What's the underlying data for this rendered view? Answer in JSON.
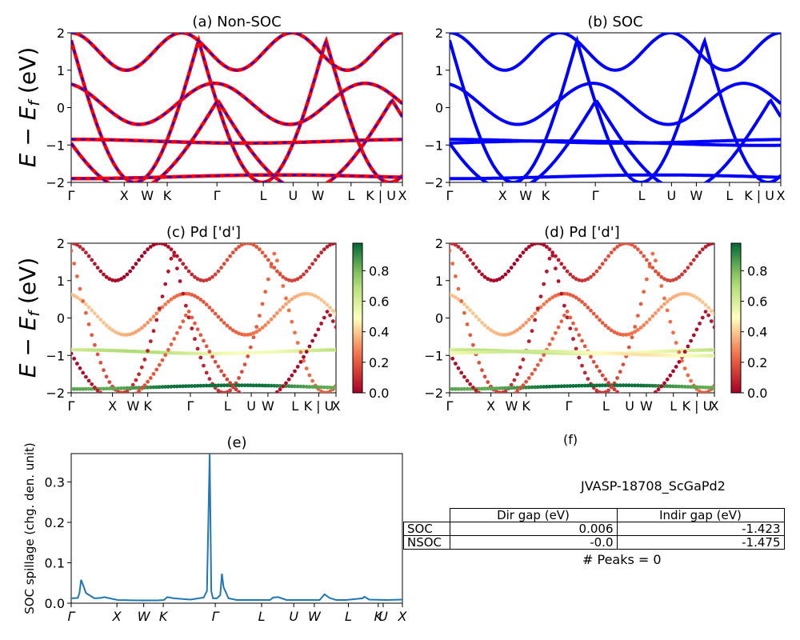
{
  "chart_data": [
    {
      "panel": "a",
      "type": "line",
      "title": "(a) Non-SOC",
      "ylabel": "E − E_f (eV)",
      "ylim": [
        -2,
        2
      ],
      "yticks": [
        "2",
        "1",
        "0",
        "−1",
        "−2"
      ],
      "xticks": [
        "Γ",
        "X",
        "W",
        "K",
        "Γ",
        "L",
        "U",
        "W",
        "L",
        "K | U",
        "X"
      ],
      "colors": {
        "band": "#ff0000",
        "overlay": "#0000ff"
      }
    },
    {
      "panel": "b",
      "type": "line",
      "title": "(b) SOC",
      "ylim": [
        -2,
        2
      ],
      "yticks": [
        "2",
        "1",
        "0",
        "−1",
        "−2"
      ],
      "xticks": [
        "Γ",
        "X",
        "W",
        "K",
        "Γ",
        "L",
        "U",
        "W",
        "L",
        "K | U",
        "X"
      ],
      "colors": {
        "band": "#0000ff"
      }
    },
    {
      "panel": "c",
      "type": "scatter",
      "title": "(c)  Pd ['d']",
      "ylabel": "E − E_f (eV)",
      "ylim": [
        -2,
        2
      ],
      "yticks": [
        "2",
        "1",
        "0",
        "−1",
        "−2"
      ],
      "xticks": [
        "Γ",
        "X",
        "W",
        "K",
        "Γ",
        "L",
        "U",
        "W",
        "L",
        "K | U",
        "X"
      ],
      "colorbar": {
        "ticks": [
          "0.8",
          "0.6",
          "0.4",
          "0.2",
          "0.0"
        ],
        "colormap": "RdYlGn"
      }
    },
    {
      "panel": "d",
      "type": "scatter",
      "title": "(d) Pd ['d']",
      "ylim": [
        -2,
        2
      ],
      "yticks": [
        "2",
        "1",
        "0",
        "−1",
        "−2"
      ],
      "xticks": [
        "Γ",
        "X",
        "W",
        "K",
        "Γ",
        "L",
        "U",
        "W",
        "L",
        "K | U",
        "X"
      ],
      "colorbar": {
        "ticks": [
          "0.8",
          "0.6",
          "0.4",
          "0.2",
          "0.0"
        ],
        "colormap": "RdYlGn"
      }
    },
    {
      "panel": "e",
      "type": "line",
      "title": "(e)",
      "ylabel": "SOC spillage (chg. den. unit)",
      "ylim": [
        0,
        0.37
      ],
      "yticks": [
        "0.3",
        "0.2",
        "0.1",
        "0.0"
      ],
      "ytick_values": [
        0.3,
        0.2,
        0.1,
        0.0
      ],
      "xticks": [
        "Γ",
        "X",
        "W",
        "K",
        "Γ",
        "L",
        "U",
        "W",
        "L",
        "K",
        "U",
        "X"
      ],
      "color": "#1f77b4",
      "x": [
        0,
        0.02,
        0.025,
        0.03,
        0.045,
        0.07,
        0.09,
        0.1,
        0.14,
        0.2,
        0.26,
        0.28,
        0.29,
        0.31,
        0.36,
        0.4,
        0.41,
        0.418,
        0.423,
        0.428,
        0.44,
        0.45,
        0.455,
        0.46,
        0.475,
        0.5,
        0.55,
        0.6,
        0.61,
        0.625,
        0.65,
        0.7,
        0.75,
        0.765,
        0.78,
        0.8,
        0.83,
        0.88,
        0.885,
        0.9,
        0.95,
        1.0
      ],
      "y": [
        0.012,
        0.013,
        0.025,
        0.058,
        0.025,
        0.012,
        0.013,
        0.015,
        0.008,
        0.007,
        0.007,
        0.008,
        0.015,
        0.012,
        0.009,
        0.014,
        0.03,
        0.37,
        0.03,
        0.012,
        0.012,
        0.02,
        0.073,
        0.04,
        0.012,
        0.008,
        0.008,
        0.008,
        0.014,
        0.015,
        0.008,
        0.008,
        0.008,
        0.022,
        0.013,
        0.008,
        0.008,
        0.012,
        0.016,
        0.009,
        0.008,
        0.009
      ]
    }
  ],
  "panel_f": {
    "title": "(f)",
    "material": "JVASP-18708_ScGaPd2",
    "table_headers": [
      "",
      "Dir gap (eV)",
      "Indir gap (eV)"
    ],
    "rows": [
      {
        "label": "SOC",
        "dir": "0.006",
        "indir": "-1.423"
      },
      {
        "label": "NSOC",
        "dir": "-0.0",
        "indir": "-1.475"
      }
    ],
    "peaks": "# Peaks = 0"
  }
}
